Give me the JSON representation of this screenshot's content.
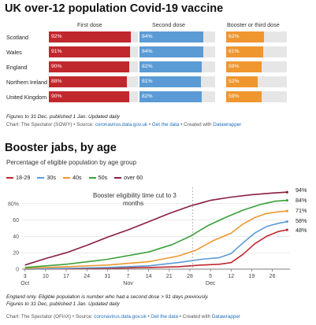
{
  "vaccine": {
    "title": "UK over-12 population Covid-19 vaccine",
    "headers": [
      "First dose",
      "Second dose",
      "Booster or third dose"
    ],
    "colors": [
      "#c0282d",
      "#5b9bd5",
      "#f0962e"
    ],
    "rows": [
      {
        "label": "Scotland",
        "values": [
          92,
          84,
          62
        ]
      },
      {
        "label": "Wales",
        "values": [
          91,
          84,
          61
        ]
      },
      {
        "label": "England",
        "values": [
          90,
          82,
          59
        ]
      },
      {
        "label": "Northern Ireland",
        "values": [
          88,
          81,
          52
        ]
      },
      {
        "label": "United Kingdom",
        "values": [
          90,
          82,
          59
        ]
      }
    ],
    "note": "Figures to 31 Dec, published 1 Jan. Updated daily",
    "source": {
      "prefix": "Chart: The Spectator (SOWY) • Source: ",
      "link1": "coronavirus.data.gov.uk",
      "sep1": " • ",
      "link2": "Get the data",
      "sep2": " • Created with ",
      "link3": "Datawrapper"
    }
  },
  "booster": {
    "title": "Booster jabs, by age",
    "subtitle": "Percentage of eligible population by age group",
    "annotation": [
      "Booster eligibility time cut to 3",
      "months"
    ],
    "note_lines": [
      "England only. Eligible population is number who had a second dose > 91 days previously.",
      "Figures to 31 Dec, published 1 Jan. Updated daily"
    ],
    "source": {
      "prefix": "Chart: The Spectator (OFinX) • Source: ",
      "link1": "coronavirus.data.gov.uk",
      "sep1": " • ",
      "link2": "Get the data",
      "sep2": " • Created with ",
      "link3": "Datawrapper"
    }
  },
  "chart_data": {
    "type": "line",
    "x_tick_labels": [
      {
        "day": 0,
        "label": "3"
      },
      {
        "day": 7,
        "label": "10"
      },
      {
        "day": 14,
        "label": "17"
      },
      {
        "day": 21,
        "label": "24"
      },
      {
        "day": 28,
        "label": "31"
      },
      {
        "day": 35,
        "label": "7"
      },
      {
        "day": 42,
        "label": "14"
      },
      {
        "day": 49,
        "label": "21"
      },
      {
        "day": 56,
        "label": "28"
      },
      {
        "day": 63,
        "label": "5"
      },
      {
        "day": 70,
        "label": "12"
      },
      {
        "day": 77,
        "label": "19"
      },
      {
        "day": 84,
        "label": "26"
      }
    ],
    "month_labels": [
      {
        "day": 0,
        "label": "Oct"
      },
      {
        "day": 35,
        "label": "Nov"
      },
      {
        "day": 63,
        "label": "Dec"
      }
    ],
    "xlim": [
      -1,
      90
    ],
    "ylim": [
      0,
      100
    ],
    "y_ticks": [
      0,
      20,
      40,
      60,
      80
    ],
    "y_tick_labels": [
      "0",
      "20",
      "40",
      "60",
      "80%"
    ],
    "annotation_day": 57,
    "series": [
      {
        "name": "18-29",
        "color": "#c0282d",
        "end_label": "48%",
        "points": [
          [
            0,
            0
          ],
          [
            14,
            0.5
          ],
          [
            28,
            1
          ],
          [
            42,
            2
          ],
          [
            52,
            3
          ],
          [
            60,
            5
          ],
          [
            66,
            6
          ],
          [
            70,
            8
          ],
          [
            74,
            18
          ],
          [
            78,
            31
          ],
          [
            82,
            40
          ],
          [
            86,
            46
          ],
          [
            89,
            48
          ]
        ]
      },
      {
        "name": "30s",
        "color": "#5b9bd5",
        "end_label": "58%",
        "points": [
          [
            0,
            0
          ],
          [
            14,
            1
          ],
          [
            28,
            2
          ],
          [
            42,
            4
          ],
          [
            52,
            8
          ],
          [
            60,
            12
          ],
          [
            66,
            14
          ],
          [
            70,
            19
          ],
          [
            74,
            32
          ],
          [
            78,
            44
          ],
          [
            82,
            52
          ],
          [
            86,
            56
          ],
          [
            89,
            58
          ]
        ]
      },
      {
        "name": "40s",
        "color": "#f0962e",
        "end_label": "71%",
        "points": [
          [
            0,
            1
          ],
          [
            14,
            3
          ],
          [
            28,
            5
          ],
          [
            42,
            9
          ],
          [
            52,
            16
          ],
          [
            58,
            23
          ],
          [
            64,
            35
          ],
          [
            70,
            44
          ],
          [
            74,
            55
          ],
          [
            78,
            63
          ],
          [
            82,
            68
          ],
          [
            86,
            70
          ],
          [
            89,
            71
          ]
        ]
      },
      {
        "name": "50s",
        "color": "#3aa13a",
        "end_label": "84%",
        "points": [
          [
            0,
            2
          ],
          [
            14,
            6
          ],
          [
            28,
            12
          ],
          [
            42,
            21
          ],
          [
            50,
            30
          ],
          [
            56,
            40
          ],
          [
            62,
            53
          ],
          [
            68,
            63
          ],
          [
            74,
            72
          ],
          [
            80,
            79
          ],
          [
            85,
            83
          ],
          [
            89,
            84
          ]
        ]
      },
      {
        "name": "over 60",
        "color": "#8b1e3f",
        "end_label": "94%",
        "points": [
          [
            0,
            5
          ],
          [
            7,
            13
          ],
          [
            14,
            20
          ],
          [
            21,
            29
          ],
          [
            28,
            39
          ],
          [
            35,
            48
          ],
          [
            42,
            58
          ],
          [
            49,
            68
          ],
          [
            56,
            77
          ],
          [
            63,
            84
          ],
          [
            70,
            88
          ],
          [
            77,
            91
          ],
          [
            84,
            93
          ],
          [
            89,
            94
          ]
        ]
      }
    ]
  }
}
